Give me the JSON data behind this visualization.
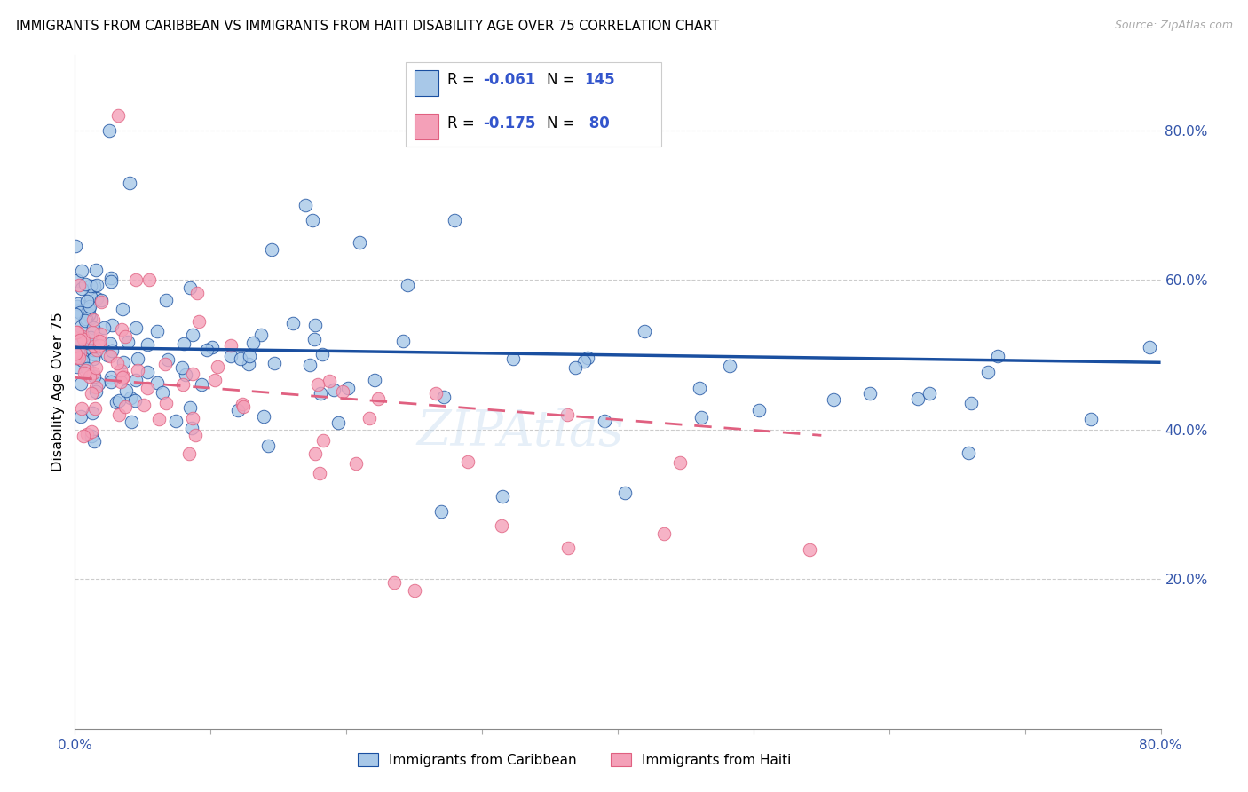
{
  "title": "IMMIGRANTS FROM CARIBBEAN VS IMMIGRANTS FROM HAITI DISABILITY AGE OVER 75 CORRELATION CHART",
  "source": "Source: ZipAtlas.com",
  "ylabel": "Disability Age Over 75",
  "xlim": [
    0.0,
    0.8
  ],
  "ylim": [
    0.0,
    0.9
  ],
  "color_caribbean": "#a8c8e8",
  "color_haiti": "#f4a0b8",
  "color_caribbean_line": "#1a4fa0",
  "color_haiti_line": "#e06080",
  "watermark": "ZIPAtlas",
  "legend_label1": "Immigrants from Caribbean",
  "legend_label2": "Immigrants from Haiti",
  "r1": "-0.061",
  "n1": "145",
  "r2": "-0.175",
  "n2": " 80"
}
